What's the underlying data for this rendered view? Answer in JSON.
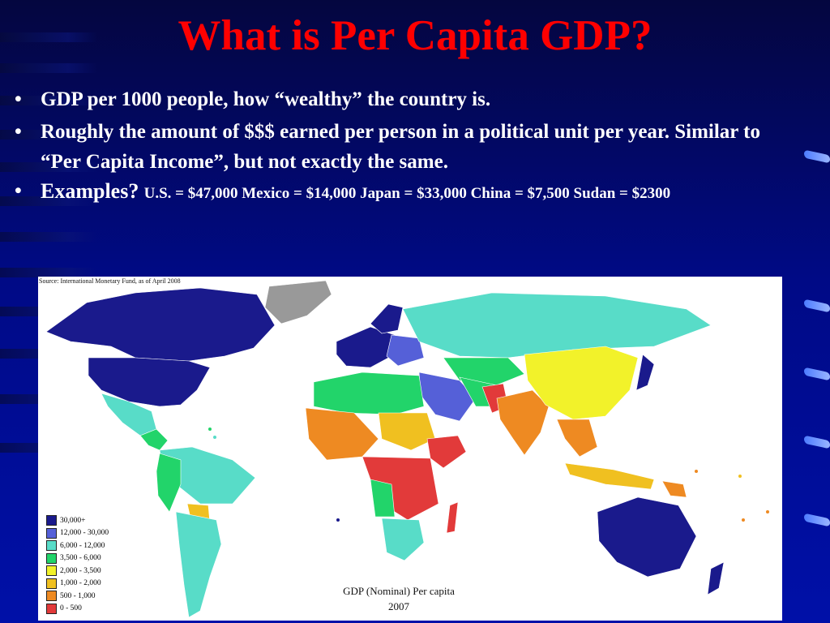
{
  "slide": {
    "title": "What is Per Capita GDP?",
    "bullet_symbol": "•",
    "bullets": [
      "GDP per 1000 people, how “wealthy” the country is.",
      "Roughly the amount of $$$ earned per person in a political unit per year.  Similar to “Per Capita Income”, but not exactly the same."
    ],
    "examples_lead": "Examples?",
    "examples_text": "U.S. = $47,000  Mexico = $14,000  Japan = $33,000 China =  $7,500 Sudan = $2300"
  },
  "map": {
    "source": "Source: International Monetary Fund, as of April 2008",
    "caption_title": "GDP (Nominal) Per capita",
    "caption_year": "2007",
    "legend": [
      {
        "label": "30,000+",
        "color": "#1a1a8c"
      },
      {
        "label": "12,000 - 30,000",
        "color": "#5560d8"
      },
      {
        "label": "6,000 - 12,000",
        "color": "#58dcc8"
      },
      {
        "label": "3,500 - 6,000",
        "color": "#22d46a"
      },
      {
        "label": "2,000 - 3,500",
        "color": "#f2f22a"
      },
      {
        "label": "1,000 - 2,000",
        "color": "#f0c020"
      },
      {
        "label": "500 - 1,000",
        "color": "#ee8a22"
      },
      {
        "label": "0 - 500",
        "color": "#e23a3a"
      }
    ],
    "no_data_color": "#999999"
  }
}
